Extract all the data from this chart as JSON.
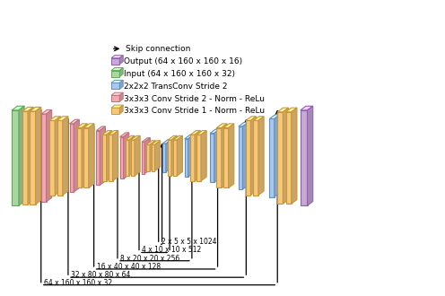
{
  "title": "",
  "background_color": "#ffffff",
  "legend_items": [
    {
      "label": "3x3x3 Conv Stride 1 - Norm - ReLu",
      "color": "#F5C87A",
      "edge_color": "#C8963C"
    },
    {
      "label": "3x3x3 Conv Stride 2 - Norm - ReLu",
      "color": "#F4A8B0",
      "edge_color": "#C07080"
    },
    {
      "label": "2x2x2 TransConv Stride 2",
      "color": "#A8C8F0",
      "edge_color": "#6090C0"
    },
    {
      "label": "Input (64 x 160 x 160 x 32)",
      "color": "#A8D8A0",
      "edge_color": "#60A858"
    },
    {
      "label": "Output (64 x 160 x 160 x 16)",
      "color": "#C8A8D8",
      "edge_color": "#9060B0"
    }
  ],
  "skip_labels": [
    "64 x 160 x 160 x 32",
    "32 x 80 x 80 x 64",
    "16 x 40 x 40 x 128",
    "8 x 20 x 20 x 256",
    "4 x 10 x 10 x 512",
    "2 x 5 x 5 x 1024"
  ],
  "colors": {
    "yellow": "#F5C87A",
    "yellow_edge": "#C8963C",
    "pink": "#F4A8B0",
    "pink_edge": "#C07080",
    "blue": "#A8C8F0",
    "blue_edge": "#6090C0",
    "green": "#A8D8A0",
    "green_edge": "#60A858",
    "purple": "#C8A8D8",
    "purple_edge": "#9060B0"
  }
}
